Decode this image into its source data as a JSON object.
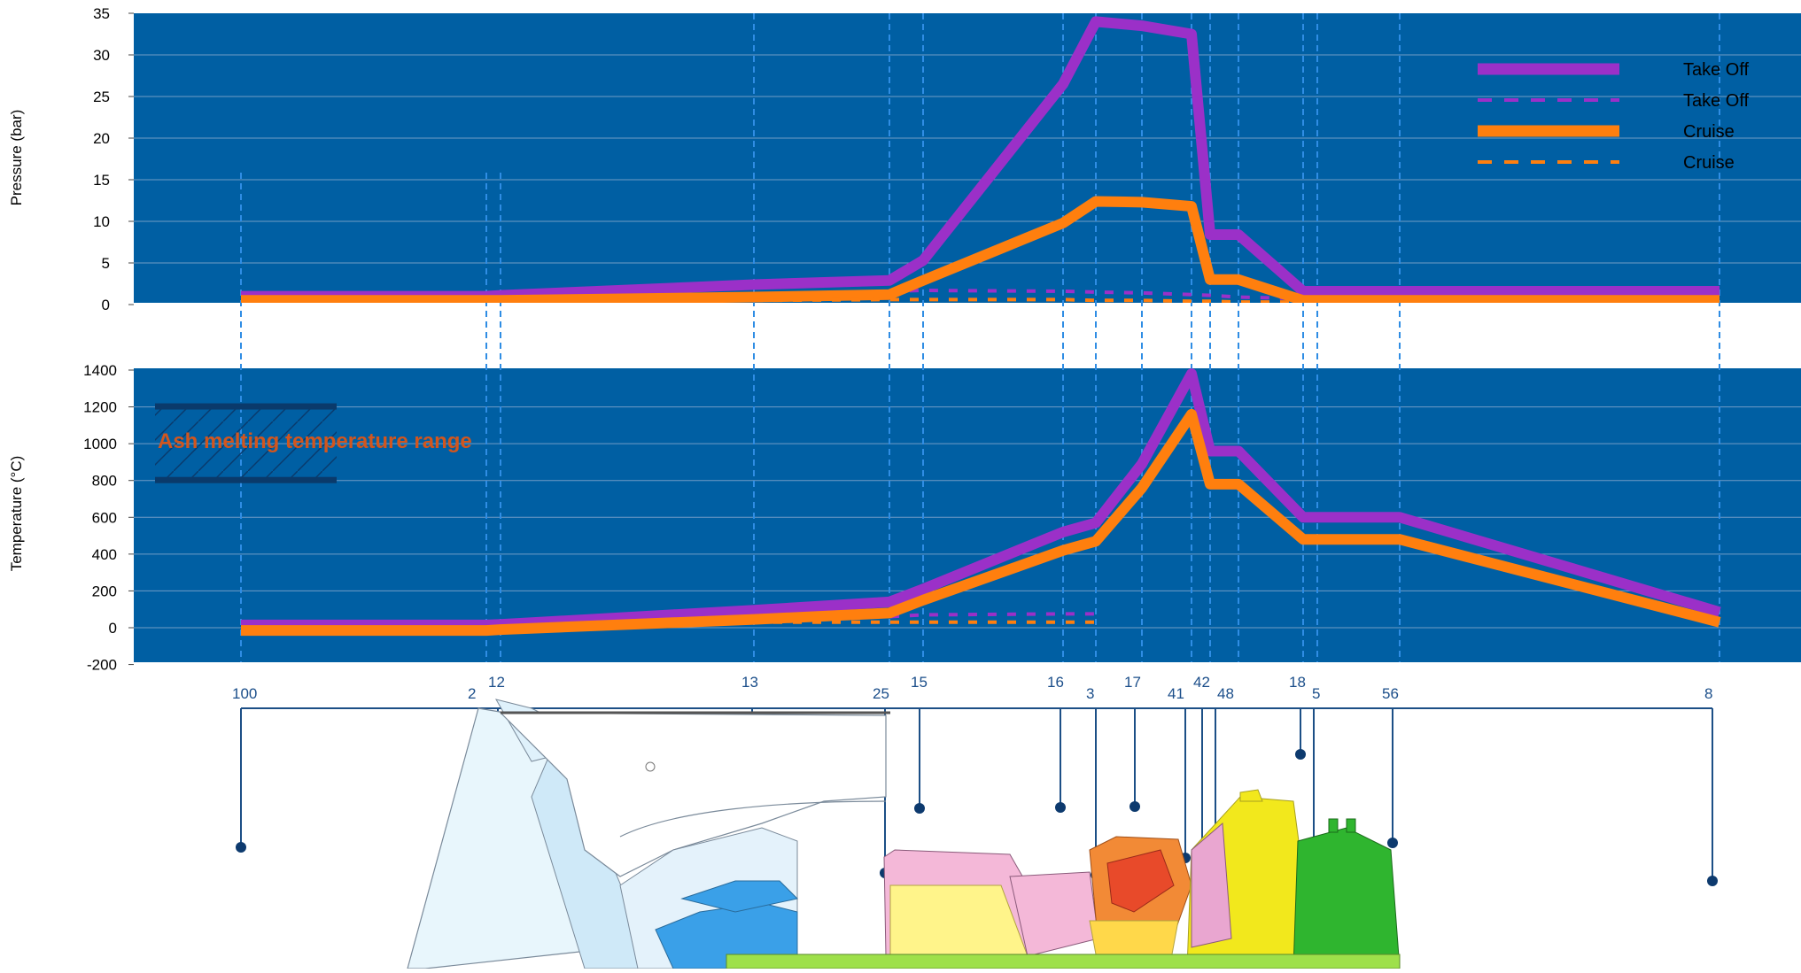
{
  "chart_data": [
    {
      "type": "line",
      "ylabel": "Pressure (bar)",
      "ylim": [
        0,
        35
      ],
      "yticks": [
        "35",
        "30",
        "25",
        "20",
        "15",
        "10",
        "5",
        "0"
      ],
      "grid": true,
      "legend_position": "top-right",
      "legend": [
        "Take Off",
        "Take Off",
        "Cruise",
        "Cruise"
      ],
      "x": [
        100,
        2,
        12,
        13,
        25,
        15,
        16,
        3,
        17,
        41,
        42,
        48,
        18,
        5,
        56,
        8
      ],
      "series": [
        {
          "name": "Take Off",
          "style": "solid",
          "color": "#9b30c8",
          "values": [
            1.0,
            1.0,
            1.1,
            2.4,
            2.9,
            5.3,
            26.5,
            34.0,
            33.5,
            32.5,
            8.4,
            8.4,
            1.6,
            1.6,
            1.6,
            1.6
          ]
        },
        {
          "name": "Take Off",
          "style": "dashed",
          "color": "#9b30c8",
          "values": [
            null,
            null,
            0.9,
            1.1,
            1.6,
            1.7,
            1.6,
            1.5,
            1.4,
            1.2,
            1.1,
            0.9,
            0.7,
            null,
            null,
            null
          ]
        },
        {
          "name": "Cruise",
          "style": "solid",
          "color": "#ff7f0e",
          "values": [
            0.5,
            0.5,
            0.5,
            0.9,
            1.2,
            2.9,
            9.8,
            12.4,
            12.3,
            11.8,
            3.0,
            3.0,
            0.5,
            0.5,
            0.5,
            0.5
          ]
        },
        {
          "name": "Cruise",
          "style": "dashed",
          "color": "#ff7f0e",
          "values": [
            null,
            null,
            0.4,
            0.5,
            0.6,
            0.6,
            0.6,
            0.5,
            0.5,
            0.4,
            0.4,
            0.3,
            0.3,
            null,
            null,
            null
          ]
        }
      ]
    },
    {
      "type": "line",
      "ylabel": "Temperature (°C)",
      "ylim": [
        -200,
        1400
      ],
      "yticks": [
        "1400",
        "1200",
        "1000",
        "800",
        "600",
        "400",
        "200",
        "0",
        "-200"
      ],
      "grid": true,
      "annotation": "Ash melting temperature range",
      "annotation_range": [
        800,
        1200
      ],
      "x": [
        100,
        2,
        12,
        13,
        25,
        15,
        16,
        3,
        17,
        41,
        42,
        48,
        18,
        5,
        56,
        8
      ],
      "series": [
        {
          "name": "Take Off",
          "style": "solid",
          "color": "#9b30c8",
          "values": [
            15,
            15,
            18,
            95,
            140,
            210,
            520,
            570,
            890,
            1380,
            960,
            960,
            600,
            600,
            600,
            85
          ]
        },
        {
          "name": "Take Off",
          "style": "dashed",
          "color": "#9b30c8",
          "values": [
            null,
            null,
            null,
            50,
            60,
            70,
            75,
            75,
            null,
            null,
            null,
            null,
            null,
            null,
            null,
            null
          ]
        },
        {
          "name": "Cruise",
          "style": "solid",
          "color": "#ff7f0e",
          "values": [
            -15,
            -15,
            -10,
            45,
            80,
            150,
            420,
            470,
            760,
            1160,
            780,
            780,
            480,
            480,
            480,
            30
          ]
        },
        {
          "name": "Cruise",
          "style": "dashed",
          "color": "#ff7f0e",
          "values": [
            null,
            null,
            null,
            30,
            30,
            30,
            30,
            30,
            null,
            null,
            null,
            null,
            null,
            null,
            null,
            null
          ]
        }
      ]
    }
  ],
  "stations": [
    "100",
    "2",
    "12",
    "13",
    "25",
    "15",
    "16",
    "3",
    "17",
    "41",
    "42",
    "48",
    "18",
    "5",
    "56",
    "8"
  ],
  "colors": {
    "plot_bg": "#005fa3",
    "grid": "#6f9cc6",
    "station_line": "#2f8de4",
    "take_off": "#9b30c8",
    "cruise": "#ff7f0e",
    "annotation_text": "#d2561e",
    "annotation_band": "#0a3a6b",
    "callout": "#1c4f86"
  },
  "engine_illustration": {
    "parts": [
      "fan",
      "low-pressure-compressor",
      "bypass-duct",
      "high-pressure-compressor",
      "combustor",
      "turbine",
      "exhaust"
    ]
  }
}
